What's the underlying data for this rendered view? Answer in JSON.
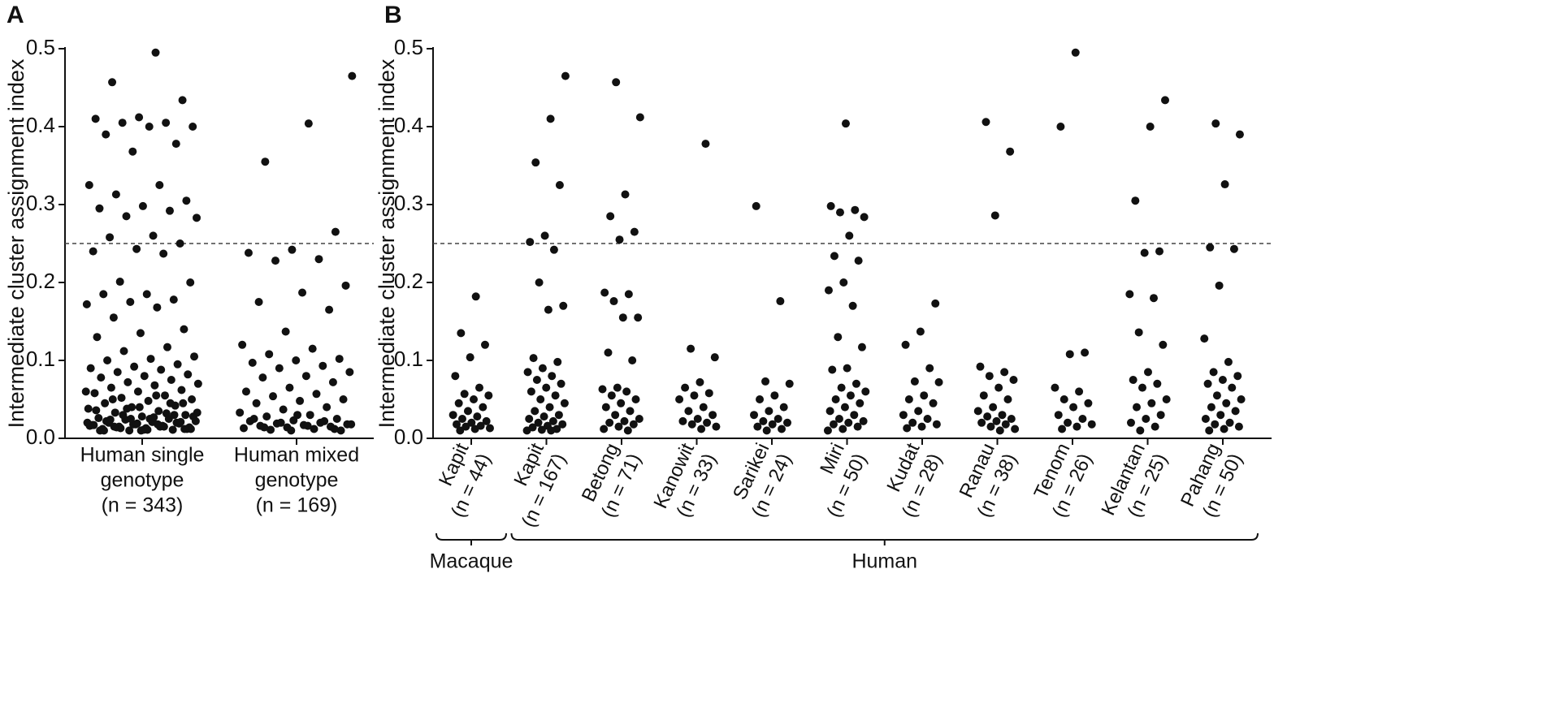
{
  "chart_data": [
    {
      "type": "strip",
      "panel": "A",
      "ylabel": "Intermediate cluster assignment index",
      "ylim": [
        0,
        0.5
      ],
      "yticks": [
        {
          "value": 0,
          "label": "0.0"
        },
        0.1,
        0.2,
        0.3,
        0.4,
        0.5
      ],
      "threshold": 0.25,
      "color": "#111111",
      "categories": [
        [
          "Human single",
          "genotype",
          "(n = 343)"
        ],
        [
          "Human mixed",
          "genotype",
          "(n = 169)"
        ]
      ],
      "values": [
        [
          0.495,
          0.457,
          0.434,
          0.412,
          0.41,
          0.405,
          0.405,
          0.4,
          0.4,
          0.39,
          0.378,
          0.368,
          0.325,
          0.325,
          0.313,
          0.305,
          0.298,
          0.295,
          0.292,
          0.285,
          0.283,
          0.26,
          0.258,
          0.25,
          0.243,
          0.24,
          0.237,
          0.201,
          0.2,
          0.185,
          0.185,
          0.178,
          0.175,
          0.172,
          0.168,
          0.155,
          0.14,
          0.135,
          0.13,
          0.117,
          0.112,
          0.105,
          0.102,
          0.1,
          0.095,
          0.092,
          0.09,
          0.088,
          0.085,
          0.082,
          0.08,
          0.078,
          0.075,
          0.072,
          0.07,
          0.068,
          0.065,
          0.062,
          0.06,
          0.058,
          0.055,
          0.052,
          0.05,
          0.048,
          0.045,
          0.042,
          0.04,
          0.038,
          0.035,
          0.033,
          0.03,
          0.028,
          0.026,
          0.025,
          0.024,
          0.022,
          0.021,
          0.02,
          0.019,
          0.018,
          0.017,
          0.016,
          0.015,
          0.014,
          0.013,
          0.012,
          0.011,
          0.01,
          0.06,
          0.055,
          0.05,
          0.045,
          0.04,
          0.036,
          0.032,
          0.03,
          0.028,
          0.025,
          0.022,
          0.02,
          0.018,
          0.016,
          0.015,
          0.014,
          0.012,
          0.011,
          0.01,
          0.045,
          0.038,
          0.033,
          0.027,
          0.024,
          0.021,
          0.019,
          0.017,
          0.015,
          0.013,
          0.012,
          0.011,
          0.01,
          0.03,
          0.025,
          0.02,
          0.018,
          0.015,
          0.012,
          0.01
        ],
        [
          0.465,
          0.404,
          0.355,
          0.265,
          0.242,
          0.238,
          0.23,
          0.228,
          0.196,
          0.187,
          0.175,
          0.165,
          0.137,
          0.12,
          0.115,
          0.108,
          0.102,
          0.1,
          0.097,
          0.093,
          0.09,
          0.085,
          0.08,
          0.078,
          0.072,
          0.065,
          0.06,
          0.057,
          0.054,
          0.05,
          0.048,
          0.045,
          0.04,
          0.037,
          0.033,
          0.03,
          0.028,
          0.025,
          0.023,
          0.022,
          0.02,
          0.019,
          0.018,
          0.017,
          0.016,
          0.015,
          0.014,
          0.013,
          0.012,
          0.011,
          0.01,
          0.03,
          0.025,
          0.022,
          0.02,
          0.018,
          0.016,
          0.014,
          0.012,
          0.01
        ]
      ]
    },
    {
      "type": "strip",
      "panel": "B",
      "ylabel": "Intermediate cluster assignment index",
      "ylim": [
        0,
        0.5
      ],
      "yticks": [
        {
          "value": 0,
          "label": "0.0"
        },
        0.1,
        0.2,
        0.3,
        0.4,
        0.5
      ],
      "threshold": 0.25,
      "color": "#111111",
      "categories": [
        [
          "Kapit",
          "(n = 44)"
        ],
        [
          "Kapit",
          "(n = 167)"
        ],
        [
          "Betong",
          "(n = 71)"
        ],
        [
          "Kanowit",
          "(n = 33)"
        ],
        [
          "Sarikei",
          "(n = 24)"
        ],
        [
          "Miri",
          "(n = 50)"
        ],
        [
          "Kudat",
          "(n = 28)"
        ],
        [
          "Ranau",
          "(n = 38)"
        ],
        [
          "Tenom",
          "(n = 26)"
        ],
        [
          "Kelantan",
          "(n = 25)"
        ],
        [
          "Pahang",
          "(n = 50)"
        ]
      ],
      "groups": [
        {
          "label": "Macaque",
          "first": 0,
          "last": 0
        },
        {
          "label": "Human",
          "first": 1,
          "last": 10
        }
      ],
      "values": [
        [
          0.182,
          0.135,
          0.12,
          0.104,
          0.08,
          0.065,
          0.057,
          0.055,
          0.05,
          0.045,
          0.04,
          0.035,
          0.03,
          0.028,
          0.025,
          0.022,
          0.02,
          0.018,
          0.016,
          0.015,
          0.013,
          0.012,
          0.01
        ],
        [
          0.465,
          0.41,
          0.354,
          0.325,
          0.26,
          0.252,
          0.242,
          0.2,
          0.17,
          0.165,
          0.103,
          0.098,
          0.09,
          0.085,
          0.08,
          0.075,
          0.07,
          0.065,
          0.06,
          0.055,
          0.05,
          0.045,
          0.04,
          0.035,
          0.03,
          0.028,
          0.025,
          0.022,
          0.02,
          0.018,
          0.016,
          0.014,
          0.012,
          0.011,
          0.01,
          0.01
        ],
        [
          0.457,
          0.412,
          0.313,
          0.285,
          0.265,
          0.255,
          0.187,
          0.185,
          0.176,
          0.155,
          0.155,
          0.11,
          0.1,
          0.065,
          0.063,
          0.06,
          0.055,
          0.05,
          0.045,
          0.04,
          0.035,
          0.03,
          0.025,
          0.022,
          0.02,
          0.018,
          0.015,
          0.012,
          0.01
        ],
        [
          0.378,
          0.115,
          0.104,
          0.072,
          0.065,
          0.058,
          0.055,
          0.05,
          0.04,
          0.035,
          0.03,
          0.025,
          0.022,
          0.02,
          0.018,
          0.015,
          0.012
        ],
        [
          0.298,
          0.176,
          0.073,
          0.07,
          0.055,
          0.05,
          0.04,
          0.035,
          0.03,
          0.025,
          0.022,
          0.02,
          0.018,
          0.015,
          0.012,
          0.01
        ],
        [
          0.404,
          0.298,
          0.293,
          0.29,
          0.284,
          0.26,
          0.234,
          0.228,
          0.2,
          0.19,
          0.17,
          0.13,
          0.117,
          0.09,
          0.088,
          0.07,
          0.065,
          0.06,
          0.055,
          0.05,
          0.045,
          0.04,
          0.035,
          0.03,
          0.025,
          0.022,
          0.02,
          0.018,
          0.015,
          0.012,
          0.01
        ],
        [
          0.173,
          0.137,
          0.12,
          0.09,
          0.073,
          0.072,
          0.055,
          0.05,
          0.045,
          0.035,
          0.03,
          0.025,
          0.02,
          0.018,
          0.015,
          0.013
        ],
        [
          0.406,
          0.368,
          0.286,
          0.092,
          0.085,
          0.08,
          0.075,
          0.065,
          0.055,
          0.05,
          0.04,
          0.035,
          0.03,
          0.028,
          0.025,
          0.022,
          0.02,
          0.018,
          0.015,
          0.012,
          0.01
        ],
        [
          0.495,
          0.4,
          0.11,
          0.108,
          0.065,
          0.06,
          0.05,
          0.045,
          0.04,
          0.03,
          0.025,
          0.02,
          0.018,
          0.015,
          0.012
        ],
        [
          0.434,
          0.4,
          0.305,
          0.24,
          0.238,
          0.185,
          0.18,
          0.136,
          0.12,
          0.085,
          0.075,
          0.07,
          0.065,
          0.05,
          0.045,
          0.04,
          0.03,
          0.025,
          0.02,
          0.015,
          0.01
        ],
        [
          0.404,
          0.39,
          0.326,
          0.245,
          0.243,
          0.196,
          0.128,
          0.098,
          0.085,
          0.08,
          0.075,
          0.07,
          0.065,
          0.055,
          0.05,
          0.045,
          0.04,
          0.035,
          0.03,
          0.025,
          0.02,
          0.018,
          0.015,
          0.012,
          0.01
        ]
      ]
    }
  ]
}
